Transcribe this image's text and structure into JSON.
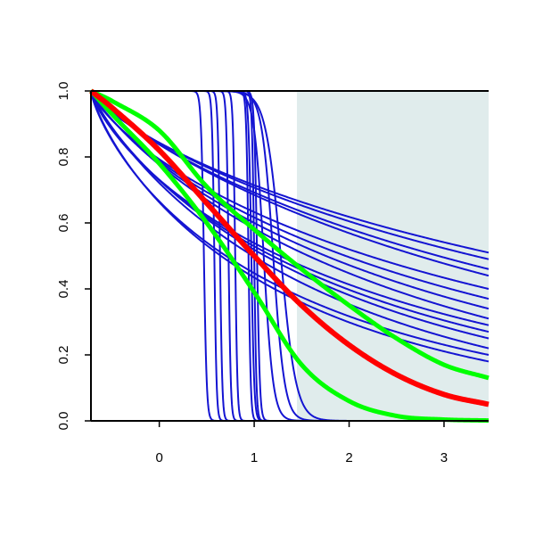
{
  "chart_data": {
    "type": "line",
    "title": "",
    "xlabel": "",
    "ylabel": "",
    "xlim": [
      -0.72,
      3.47
    ],
    "ylim": [
      0.0,
      1.0
    ],
    "x_ticks": [
      0,
      1,
      2,
      3
    ],
    "x_tick_labels": [
      "0",
      "1",
      "2",
      "3"
    ],
    "y_ticks": [
      0.0,
      0.2,
      0.4,
      0.6,
      0.8,
      1.0
    ],
    "y_tick_labels": [
      "0.0",
      "0.2",
      "0.4",
      "0.6",
      "0.8",
      "1.0"
    ],
    "grid": false,
    "legend": "none",
    "shaded_region": {
      "x_from": 1.45,
      "x_to": 3.47,
      "color": "#e0ecec"
    },
    "colors": {
      "blue": "#1414d2",
      "red": "#ff0000",
      "green": "#00ff00",
      "axis": "#000000"
    },
    "x_start": -0.72,
    "steep_blue_curves": [
      {
        "center": 0.47,
        "scale": 0.015
      },
      {
        "center": 0.58,
        "scale": 0.012
      },
      {
        "center": 0.64,
        "scale": 0.012
      },
      {
        "center": 0.73,
        "scale": 0.012
      },
      {
        "center": 0.8,
        "scale": 0.012
      },
      {
        "center": 0.94,
        "scale": 0.012
      },
      {
        "center": 0.97,
        "scale": 0.015
      },
      {
        "center": 1.0,
        "scale": 0.012
      },
      {
        "center": 1.03,
        "scale": 0.015
      }
    ],
    "medium_blue_curves": [
      {
        "center": 1.1,
        "scale": 0.05
      },
      {
        "center": 1.2,
        "scale": 0.06
      },
      {
        "center": 1.28,
        "scale": 0.08
      }
    ],
    "smooth_blue_curves": [
      {
        "y_at_x_end": 0.51
      },
      {
        "y_at_x_end": 0.49
      },
      {
        "y_at_x_end": 0.46
      },
      {
        "y_at_x_end": 0.44
      },
      {
        "y_at_x_end": 0.4
      },
      {
        "y_at_x_end": 0.37
      },
      {
        "y_at_x_end": 0.34
      },
      {
        "y_at_x_end": 0.31
      },
      {
        "y_at_x_end": 0.29
      },
      {
        "y_at_x_end": 0.27
      },
      {
        "y_at_x_end": 0.25
      },
      {
        "y_at_x_end": 0.22
      },
      {
        "y_at_x_end": 0.2
      },
      {
        "y_at_x_end": 0.18
      }
    ],
    "red_curve": {
      "x": [
        -0.72,
        -0.5,
        0,
        0.5,
        1,
        1.5,
        2,
        2.5,
        3,
        3.47
      ],
      "y": [
        1.0,
        0.95,
        0.82,
        0.66,
        0.5,
        0.35,
        0.23,
        0.14,
        0.08,
        0.05
      ]
    },
    "green_curves": [
      {
        "x": [
          -0.72,
          -0.5,
          0,
          0.5,
          1,
          1.5,
          2,
          2.5,
          3,
          3.47
        ],
        "y": [
          1.0,
          0.97,
          0.88,
          0.71,
          0.58,
          0.46,
          0.35,
          0.25,
          0.17,
          0.13
        ]
      },
      {
        "x": [
          -0.72,
          -0.5,
          0,
          0.5,
          1,
          1.5,
          2,
          2.5,
          3,
          3.47
        ],
        "y": [
          1.0,
          0.93,
          0.78,
          0.6,
          0.39,
          0.17,
          0.06,
          0.015,
          0.004,
          0.001
        ]
      }
    ]
  }
}
